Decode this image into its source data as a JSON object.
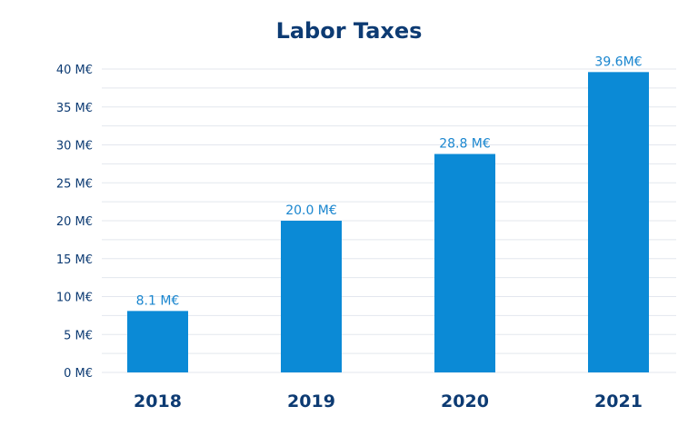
{
  "chart_data": {
    "type": "bar",
    "title": "Labor Taxes",
    "categories": [
      "2018",
      "2019",
      "2020",
      "2021"
    ],
    "values": [
      8.1,
      20.0,
      28.8,
      39.6
    ],
    "data_labels": [
      "8.1 M€",
      "20.0 M€",
      "28.8 M€",
      "39.6M€"
    ],
    "y_ticks": [
      0,
      5,
      10,
      15,
      20,
      25,
      30,
      35,
      40
    ],
    "y_tick_labels": [
      "0 M€",
      "5 M€",
      "10 M€",
      "15 M€",
      "20 M€",
      "25 M€",
      "30 M€",
      "35 M€",
      "40 M€"
    ],
    "ylim": [
      0,
      40
    ],
    "xlabel": "",
    "ylabel": "",
    "grid": true,
    "legend": "none"
  },
  "colors": {
    "bar": "#0b8ad6",
    "title": "#0d3b73",
    "axis_text": "#0d3b73",
    "data_label": "#1a86cf",
    "grid": "#e3e7ee"
  }
}
